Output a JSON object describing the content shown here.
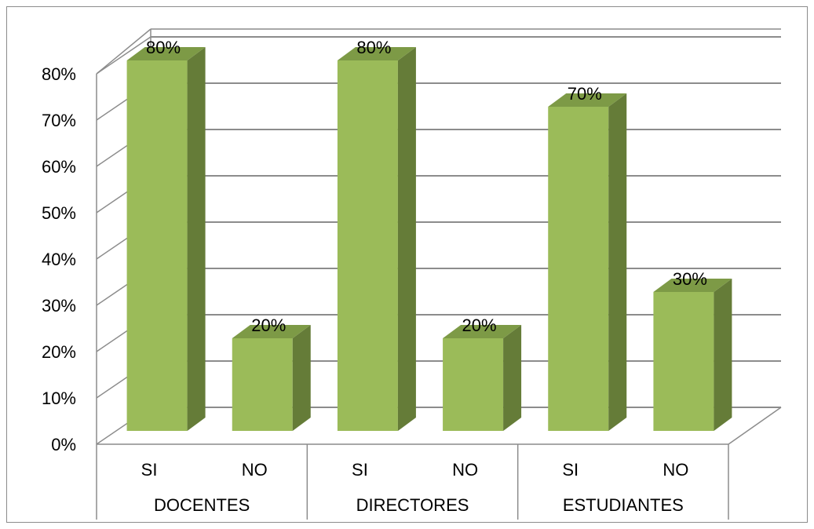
{
  "chart_data": {
    "type": "bar",
    "style": "3d-clustered-column",
    "grid": true,
    "legend": "none",
    "groups": [
      {
        "name": "DOCENTES",
        "categories": [
          "SI",
          "NO"
        ],
        "values": [
          80,
          20
        ],
        "labels": [
          "80%",
          "20%"
        ]
      },
      {
        "name": "DIRECTORES",
        "categories": [
          "SI",
          "NO"
        ],
        "values": [
          80,
          20
        ],
        "labels": [
          "80%",
          "20%"
        ]
      },
      {
        "name": "ESTUDIANTES",
        "categories": [
          "SI",
          "NO"
        ],
        "values": [
          70,
          30
        ],
        "labels": [
          "70%",
          "30%"
        ]
      }
    ],
    "ylim": [
      0,
      80
    ],
    "yticks": [
      0,
      10,
      20,
      30,
      40,
      50,
      60,
      70,
      80
    ],
    "ytick_labels": [
      "0%",
      "10%",
      "20%",
      "30%",
      "40%",
      "50%",
      "60%",
      "70%",
      "80%"
    ],
    "title": "",
    "xlabel": "",
    "ylabel": "",
    "colors": {
      "bar_front": "#9BBB59",
      "bar_side": "#657C38",
      "bar_top": "#7D9A46",
      "gridline": "#8C8C8C",
      "frame": "#8C8C8C"
    }
  }
}
